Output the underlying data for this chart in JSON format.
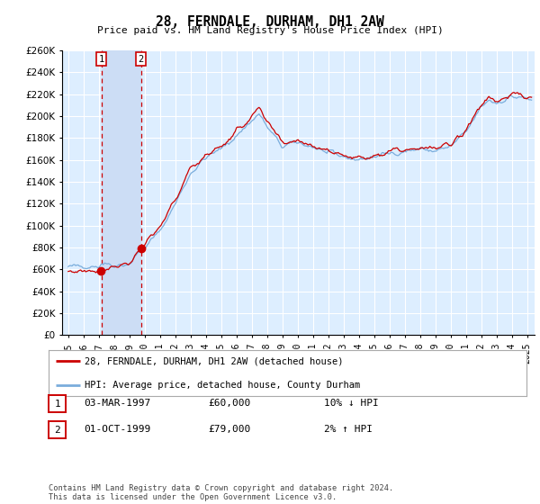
{
  "title": "28, FERNDALE, DURHAM, DH1 2AW",
  "subtitle": "Price paid vs. HM Land Registry's House Price Index (HPI)",
  "legend_line1": "28, FERNDALE, DURHAM, DH1 2AW (detached house)",
  "legend_line2": "HPI: Average price, detached house, County Durham",
  "footer": "Contains HM Land Registry data © Crown copyright and database right 2024.\nThis data is licensed under the Open Government Licence v3.0.",
  "table_rows": [
    {
      "num": "1",
      "date": "03-MAR-1997",
      "price": "£60,000",
      "hpi": "10% ↓ HPI"
    },
    {
      "num": "2",
      "date": "01-OCT-1999",
      "price": "£79,000",
      "hpi": "2% ↑ HPI"
    }
  ],
  "sale1_year": 1997.17,
  "sale1_price": 60000,
  "sale2_year": 1999.75,
  "sale2_price": 79000,
  "ylim": [
    0,
    260000
  ],
  "xlim_start": 1994.6,
  "xlim_end": 2025.5,
  "red_color": "#cc0000",
  "blue_color": "#7aaddc",
  "background_color": "#ddeeff",
  "shade_color": "#ccddf5",
  "grid_color": "#ffffff",
  "vline_color": "#cc0000",
  "label_box_edge": "#cc0000"
}
